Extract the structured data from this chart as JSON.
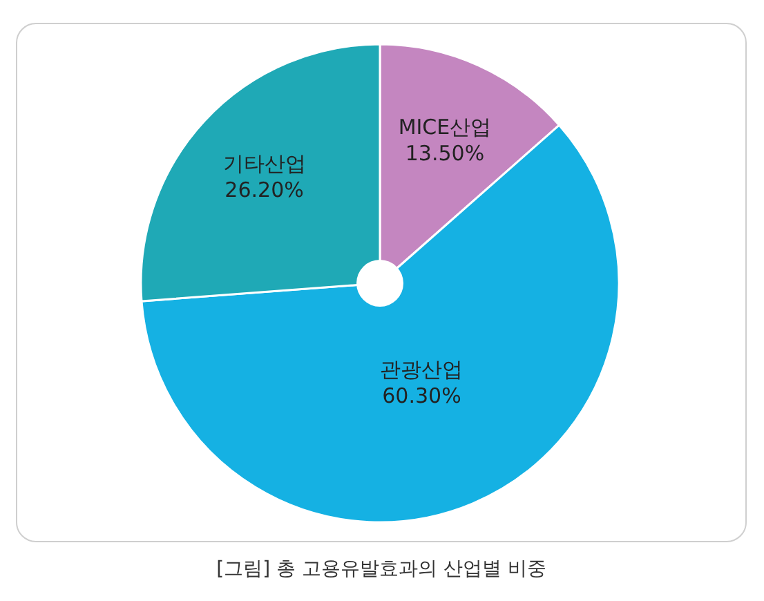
{
  "chart_data": {
    "type": "pie",
    "categories": [
      "MICE산업",
      "관광산업",
      "기타산업"
    ],
    "values": [
      13.5,
      60.3,
      26.2
    ],
    "value_labels": [
      "13.50%",
      "60.30%",
      "26.20%"
    ],
    "colors": [
      "#c486c0",
      "#15b1e3",
      "#1fa9b6"
    ],
    "annotations": [
      "[그림] 총 고용유발효과의 산업별 비중"
    ]
  }
}
